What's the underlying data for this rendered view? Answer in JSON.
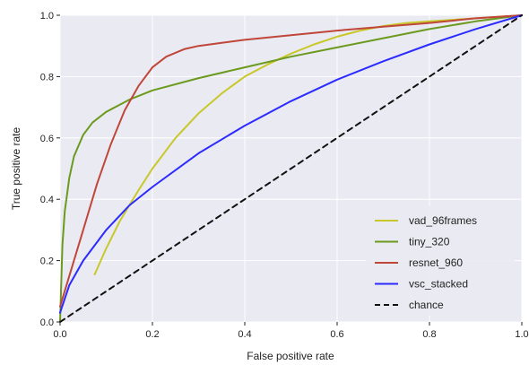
{
  "chart_data": {
    "type": "line",
    "xlabel": "False positive rate",
    "ylabel": "True positive rate",
    "xlim": [
      0,
      1
    ],
    "ylim": [
      0,
      1
    ],
    "xticks": [
      "0.0",
      "0.2",
      "0.4",
      "0.6",
      "0.8",
      "1.0"
    ],
    "yticks": [
      "0.0",
      "0.2",
      "0.4",
      "0.6",
      "0.8",
      "1.0"
    ],
    "grid": true,
    "legend_position": "lower-right",
    "series": [
      {
        "name": "vad_96frames",
        "color": "#c8c82a",
        "dash": false,
        "x": [
          0.075,
          0.1,
          0.13,
          0.17,
          0.2,
          0.25,
          0.3,
          0.35,
          0.4,
          0.45,
          0.5,
          0.55,
          0.6,
          0.65,
          0.7,
          0.75,
          0.8,
          0.85,
          0.9,
          0.95,
          1.0
        ],
        "y": [
          0.155,
          0.24,
          0.33,
          0.43,
          0.5,
          0.6,
          0.68,
          0.745,
          0.8,
          0.84,
          0.875,
          0.905,
          0.93,
          0.95,
          0.965,
          0.975,
          0.98,
          0.985,
          0.99,
          0.995,
          1.0
        ]
      },
      {
        "name": "tiny_320",
        "color": "#6b9a1f",
        "dash": false,
        "x": [
          0.0,
          0.005,
          0.01,
          0.02,
          0.03,
          0.05,
          0.07,
          0.1,
          0.15,
          0.2,
          0.3,
          0.4,
          0.5,
          0.6,
          0.7,
          0.8,
          0.9,
          1.0
        ],
        "y": [
          0.0,
          0.25,
          0.36,
          0.47,
          0.54,
          0.61,
          0.65,
          0.685,
          0.725,
          0.755,
          0.795,
          0.83,
          0.865,
          0.895,
          0.925,
          0.955,
          0.98,
          1.0
        ]
      },
      {
        "name": "resnet_960",
        "color": "#c0463a",
        "dash": false,
        "x": [
          0.0,
          0.02,
          0.05,
          0.08,
          0.11,
          0.14,
          0.17,
          0.2,
          0.23,
          0.27,
          0.3,
          0.35,
          0.4,
          0.5,
          0.6,
          0.7,
          0.8,
          0.9,
          1.0
        ],
        "y": [
          0.05,
          0.15,
          0.3,
          0.45,
          0.58,
          0.69,
          0.77,
          0.83,
          0.865,
          0.89,
          0.9,
          0.91,
          0.92,
          0.935,
          0.95,
          0.963,
          0.975,
          0.99,
          1.0
        ]
      },
      {
        "name": "vsc_stacked",
        "color": "#2b2bff",
        "dash": false,
        "x": [
          0.0,
          0.02,
          0.05,
          0.1,
          0.15,
          0.2,
          0.3,
          0.4,
          0.5,
          0.6,
          0.7,
          0.8,
          0.9,
          1.0
        ],
        "y": [
          0.03,
          0.12,
          0.2,
          0.3,
          0.38,
          0.44,
          0.55,
          0.64,
          0.72,
          0.79,
          0.85,
          0.905,
          0.955,
          1.0
        ]
      },
      {
        "name": "chance",
        "color": "#111111",
        "dash": true,
        "x": [
          0.0,
          1.0
        ],
        "y": [
          0.0,
          1.0
        ]
      }
    ]
  }
}
